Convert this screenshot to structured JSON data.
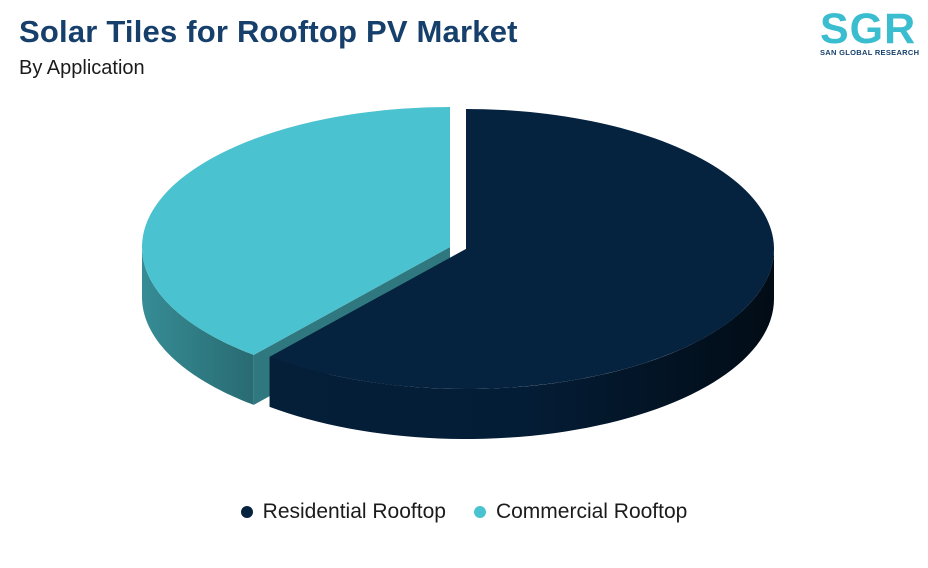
{
  "header": {
    "title": "Solar Tiles for Rooftop PV Market",
    "subtitle": "By Application"
  },
  "logo": {
    "letters": "SGR",
    "tagline": "SAN GLOBAL RESEARCH"
  },
  "colors": {
    "residential": "#05223f",
    "commercial": "#4bc2cf"
  },
  "chart_data": {
    "type": "pie",
    "style": "3d-exploded",
    "title": "Solar Tiles for Rooftop PV Market",
    "subtitle": "By Application",
    "legend_position": "bottom",
    "series": [
      {
        "name": "Residential Rooftop",
        "value": 61,
        "color": "#05223f"
      },
      {
        "name": "Commercial Rooftop",
        "value": 39,
        "color": "#4bc2cf"
      }
    ]
  }
}
